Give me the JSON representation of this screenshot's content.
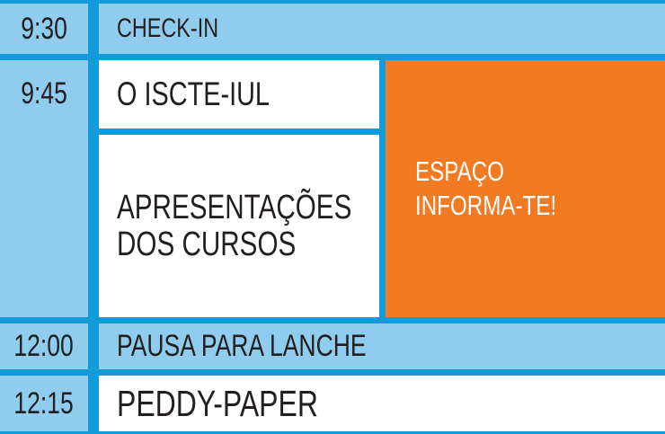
{
  "colors": {
    "grid_blue": "#119CD9",
    "light_blue": "#8FCCEE",
    "orange": "#F17A23",
    "text_dark": "#231F20",
    "text_white": "#FFFFFF"
  },
  "schedule": {
    "rows": [
      {
        "time": "9:30",
        "event": "CHECK-IN"
      },
      {
        "time": "9:45",
        "event_main": "O ISCTE-IUL",
        "event_secondary": "APRESENTAÇÕES\nDOS CURSOS",
        "side_panel": "ESPAÇO\nINFORMA-TE!"
      },
      {
        "time": "12:00",
        "event": "PAUSA PARA LANCHE"
      },
      {
        "time": "12:15",
        "event": "PEDDY-PAPER"
      }
    ]
  }
}
